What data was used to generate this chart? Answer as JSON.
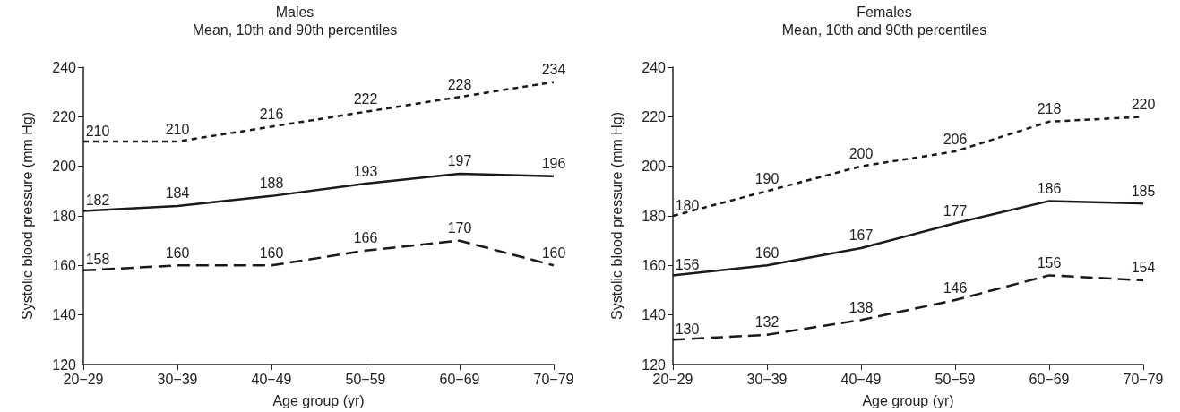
{
  "chart_data": [
    {
      "type": "line",
      "title": "Males",
      "subtitle": "Mean, 10th and 90th percentiles",
      "xlabel": "Age group (yr)",
      "ylabel": "Systolic blood pressure (mm Hg)",
      "categories": [
        "20−29",
        "30−39",
        "40−49",
        "50−59",
        "60−69",
        "70−79"
      ],
      "series": [
        {
          "color": "#1a1a1a",
          "line_style": "dotted",
          "values": [
            210,
            210,
            216,
            222,
            228,
            234
          ]
        },
        {
          "color": "#1a1a1a",
          "line_style": "solid",
          "values": [
            182,
            184,
            188,
            193,
            197,
            196
          ]
        },
        {
          "color": "#1a1a1a",
          "line_style": "dashed",
          "values": [
            158,
            160,
            160,
            166,
            170,
            160
          ]
        }
      ],
      "ylim": [
        120,
        240
      ],
      "yticks": [
        120,
        140,
        160,
        180,
        200,
        220,
        240
      ],
      "grid": false,
      "marker": "none",
      "data_labels": true
    },
    {
      "type": "line",
      "title": "Females",
      "subtitle": "Mean, 10th and 90th percentiles",
      "xlabel": "Age group (yr)",
      "ylabel": "Systolic blood pressure (mm Hg)",
      "categories": [
        "20−29",
        "30−39",
        "40−49",
        "50−59",
        "60−69",
        "70−79"
      ],
      "series": [
        {
          "color": "#1a1a1a",
          "line_style": "dotted",
          "values": [
            180,
            190,
            200,
            206,
            218,
            220
          ]
        },
        {
          "color": "#1a1a1a",
          "line_style": "solid",
          "values": [
            156,
            160,
            167,
            177,
            186,
            185
          ]
        },
        {
          "color": "#1a1a1a",
          "line_style": "dashed",
          "values": [
            130,
            132,
            138,
            146,
            156,
            154
          ]
        }
      ],
      "ylim": [
        120,
        240
      ],
      "yticks": [
        120,
        140,
        160,
        180,
        200,
        220,
        240
      ],
      "grid": false,
      "marker": "none",
      "data_labels": true
    }
  ]
}
